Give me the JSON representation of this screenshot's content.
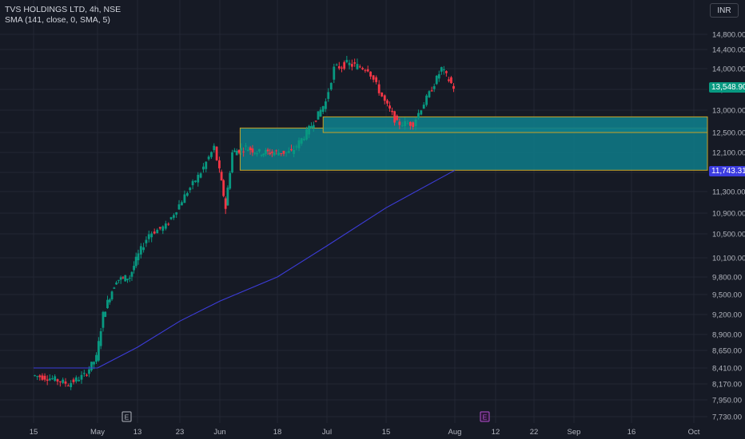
{
  "header": {
    "symbol": "TVS HOLDINGS LTD, 4h, NSE",
    "indicator": "SMA (141, close, 0, SMA, 5)",
    "currency": "INR"
  },
  "price_tags": {
    "last": "13,548.90",
    "sma": "11,743.31"
  },
  "markers": {
    "earnings_1": "E",
    "earnings_2": "E"
  },
  "colors": {
    "background": "#161a25",
    "up": "#089981",
    "down": "#f23645",
    "sma": "#3c3cd9",
    "zone_fill": "#0e7c8a",
    "zone_border": "#c9a227"
  },
  "chart_data": {
    "type": "candlestick",
    "title": "TVS HOLDINGS LTD, 4h, NSE",
    "x_ticks": [
      "15",
      "May",
      "13",
      "23",
      "Jun",
      "18",
      "Jul",
      "15",
      "Aug",
      "12",
      "22",
      "Sep",
      "16",
      "Oct"
    ],
    "y_ticks": [
      "14,800.00",
      "14,400.00",
      "14,000.00",
      "13,500.00",
      "13,000.00",
      "12,500.00",
      "12,100.00",
      "11,700.00",
      "11,300.00",
      "10,900.00",
      "10,500.00",
      "10,100.00",
      "9,800.00",
      "9,500.00",
      "9,200.00",
      "8,900.00",
      "8,650.00",
      "8,410.00",
      "8,170.00",
      "7,950.00",
      "7,730.00"
    ],
    "price_trend": [
      [
        "15 Apr",
        8300
      ],
      [
        "20 Apr",
        8250
      ],
      [
        "24 Apr",
        8170
      ],
      [
        "28 Apr",
        8300
      ],
      [
        "May",
        8550
      ],
      [
        "3 May",
        9200
      ],
      [
        "7 May",
        9750
      ],
      [
        "11 May",
        9800
      ],
      [
        "16 May",
        10500
      ],
      [
        "20 May",
        10650
      ],
      [
        "25 May",
        11300
      ],
      [
        "28 May",
        11700
      ],
      [
        "31 May",
        12200
      ],
      [
        "3 Jun",
        11000
      ],
      [
        "5 Jun",
        12100
      ],
      [
        "9 Jun",
        12200
      ],
      [
        "13 Jun",
        12100
      ],
      [
        "18 Jun",
        12100
      ],
      [
        "22 Jun",
        12100
      ],
      [
        "26 Jun",
        12500
      ],
      [
        "29 Jun",
        12900
      ],
      [
        "Jul",
        13200
      ],
      [
        "3 Jul",
        14000
      ],
      [
        "6 Jul",
        14100
      ],
      [
        "11 Jul",
        14000
      ],
      [
        "15 Jul",
        13200
      ],
      [
        "18 Jul",
        12700
      ],
      [
        "22 Jul",
        12700
      ],
      [
        "26 Jul",
        13400
      ],
      [
        "29 Jul",
        14000
      ],
      [
        "Aug",
        13550
      ]
    ],
    "sma_line": [
      [
        "15 Apr",
        8410
      ],
      [
        "May",
        8410
      ],
      [
        "13 May",
        8700
      ],
      [
        "23 May",
        9100
      ],
      [
        "Jun",
        9400
      ],
      [
        "18 Jun",
        9800
      ],
      [
        "Jul",
        10300
      ],
      [
        "15 Jul",
        11000
      ],
      [
        "Aug",
        11743.31
      ]
    ],
    "zones": [
      {
        "from": "7 Jun",
        "low": 11743.31,
        "high": 12600
      },
      {
        "from": "30 Jun",
        "low": 12500,
        "high": 12850
      }
    ],
    "last_price": 13548.9,
    "sma_last": 11743.31,
    "grid": true
  }
}
